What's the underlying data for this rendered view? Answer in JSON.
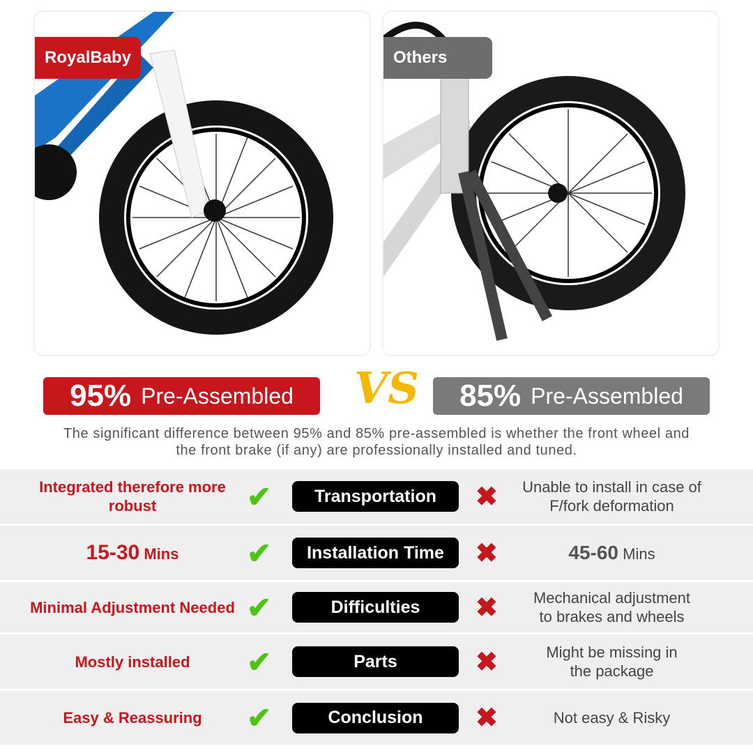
{
  "brand_tag": "RoyalBaby",
  "others_tag": "Others",
  "left_badge": {
    "pct": "95%",
    "label": "Pre-Assembled",
    "color": "#c8161d"
  },
  "right_badge": {
    "pct": "85%",
    "label": "Pre-Assembled",
    "color": "#7a7a7a"
  },
  "vs": "VS",
  "description": "The significant difference between 95% and 85% pre-assembled is whether the front wheel and the front brake (if any) are professionally installed and tuned.",
  "rows": [
    {
      "left": "Integrated therefore more robust",
      "feature": "Transportation",
      "right": "Unable to install in case of F/fork deformation"
    },
    {
      "left_big": "15-30",
      "left_small": "Mins",
      "feature": "Installation Time",
      "right_big": "45-60",
      "right_small": "Mins"
    },
    {
      "left": "Minimal Adjustment Needed",
      "feature": "Difficulties",
      "right": "Mechanical adjustment to brakes and wheels"
    },
    {
      "left": "Mostly installed",
      "feature": "Parts",
      "right": "Might be missing in the package"
    },
    {
      "left": "Easy & Reassuring",
      "feature": "Conclusion",
      "right": "Not easy & Risky"
    }
  ],
  "icons": {
    "check": "check-icon",
    "cross": "cross-icon"
  }
}
